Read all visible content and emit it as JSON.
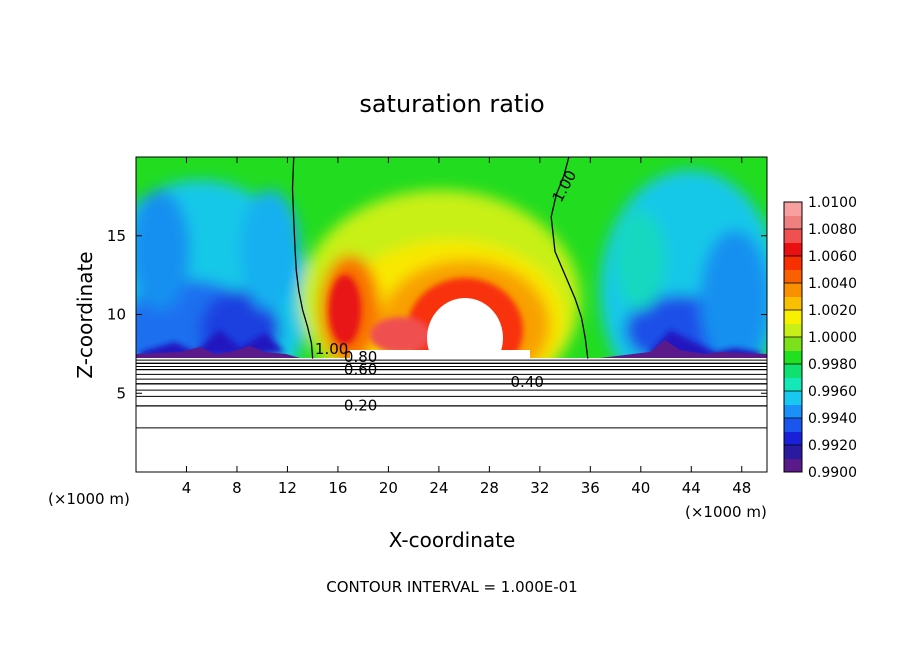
{
  "chart_data": {
    "type": "heatmap",
    "title": "saturation ratio",
    "xlabel": "X-coordinate",
    "ylabel": "Z-coordinate",
    "x_unit_label": "(×1000 m)",
    "z_unit_label": "(×1000 m)",
    "xlim": [
      0,
      50
    ],
    "ylim": [
      0,
      20
    ],
    "x_ticks": [
      4,
      8,
      12,
      16,
      20,
      24,
      28,
      32,
      36,
      40,
      44,
      48
    ],
    "x_tick_labels": [
      "4",
      "8",
      "12",
      "16",
      "20",
      "24",
      "28",
      "32",
      "36",
      "40",
      "44",
      "48"
    ],
    "y_ticks": [
      5,
      10,
      15
    ],
    "y_tick_labels": [
      "5",
      "10",
      "15"
    ],
    "colorbar": {
      "min": 0.99,
      "max": 1.01,
      "tick_labels": [
        "1.0100",
        "1.0080",
        "1.0060",
        "1.0040",
        "1.0020",
        "1.0000",
        "0.9980",
        "0.9960",
        "0.9940",
        "0.9920",
        "0.9900"
      ],
      "colors": [
        "#5a1a8a",
        "#2a1aa0",
        "#1a20d8",
        "#1a55ee",
        "#1a90f8",
        "#18c8f0",
        "#14e8b8",
        "#10e070",
        "#20e020",
        "#7ce01a",
        "#c8f018",
        "#f8f000",
        "#f8c000",
        "#f89000",
        "#f86000",
        "#f83000",
        "#e81010",
        "#f05050",
        "#f08080",
        "#f8a0a0"
      ]
    },
    "contours": [
      {
        "level": 1.0,
        "label": "1.00",
        "position": "left cloud edge",
        "x": [
          14,
          13.9,
          13.6,
          13.2,
          12.9,
          12.7,
          12.6,
          12.5,
          12.4,
          12.5
        ],
        "y": [
          7.2,
          8.2,
          9.2,
          10.3,
          11.5,
          12.8,
          14.2,
          16.0,
          18.0,
          20.0
        ]
      },
      {
        "level": 1.0,
        "label": "1.00",
        "position": "right cloud edge",
        "x": [
          35.8,
          35.6,
          35.3,
          34.8,
          34.0,
          33.2,
          32.9,
          33.3,
          33.9,
          34.3
        ],
        "y": [
          7.2,
          8.5,
          9.8,
          11.0,
          12.5,
          14.0,
          16.2,
          17.6,
          18.8,
          20.0
        ]
      },
      {
        "level": 0.8,
        "label": "0.80",
        "x": [
          0,
          50
        ],
        "y": [
          6.9,
          6.9
        ]
      },
      {
        "level": 0.6,
        "label": "0.60",
        "x": [
          0,
          50
        ],
        "y": [
          6.5,
          6.5
        ]
      },
      {
        "level": 0.4,
        "label": "0.40",
        "x": [
          0,
          50
        ],
        "y": [
          5.6,
          5.6
        ]
      },
      {
        "level": 0.2,
        "label": "0.20",
        "x": [
          0,
          50
        ],
        "y": [
          4.2,
          4.2
        ]
      }
    ],
    "grid": false,
    "legend_position": "right colorbar"
  },
  "footer": {
    "contour_interval": "CONTOUR INTERVAL = 1.000E-01"
  }
}
